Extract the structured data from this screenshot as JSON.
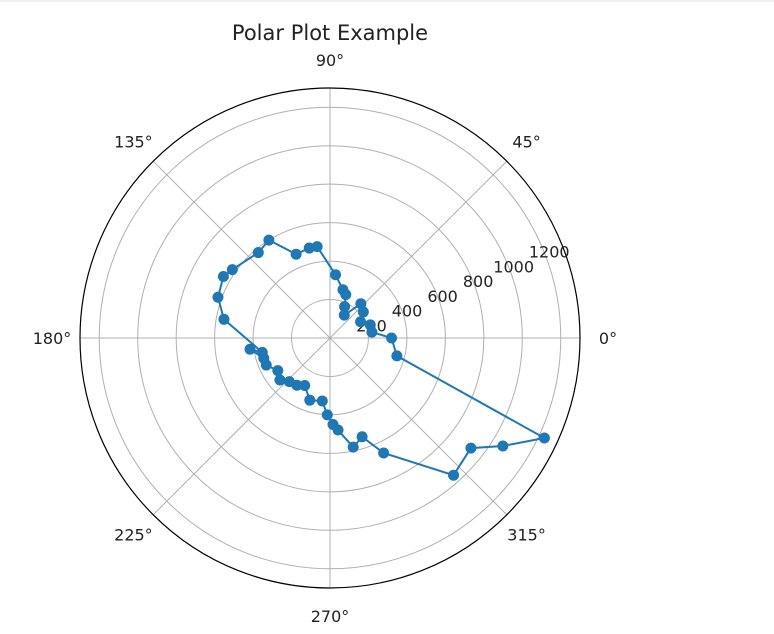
{
  "chart_data": {
    "type": "scatter",
    "subtype": "polar",
    "title": "Polar Plot Example",
    "angle_unit": "degrees",
    "theta_ticks": [
      "0°",
      "45°",
      "90°",
      "135°",
      "180°",
      "225°",
      "270°",
      "315°"
    ],
    "r_ticks": [
      "200",
      "400",
      "600",
      "800",
      "1000",
      "1200"
    ],
    "rlim": [
      0,
      1300
    ],
    "grid": true,
    "marker": "circle",
    "connected": true,
    "series": [
      {
        "color": "#1f77b4",
        "theta": [
          0,
          -15,
          -25,
          -32,
          -38,
          -48,
          -65,
          -72,
          -78,
          -88,
          -85,
          -92,
          -97,
          -108,
          -118,
          -125,
          -133,
          -140,
          -148,
          -157,
          -163,
          -172,
          -168,
          170,
          160,
          150,
          145,
          130,
          122,
          112,
          103,
          98,
          85,
          75,
          70,
          65,
          58,
          48,
          38,
          28,
          18,
          8
        ],
        "r": [
          320,
          360,
          1230,
          1060,
          930,
          960,
          660,
          540,
          580,
          450,
          480,
          400,
          330,
          340,
          280,
          300,
          310,
          340,
          320,
          360,
          360,
          420,
          360,
          560,
          620,
          640,
          620,
          580,
          600,
          470,
          480,
          480,
          330,
          260,
          240,
          180,
          140,
          240,
          220,
          180,
          220,
          220
        ]
      }
    ]
  }
}
